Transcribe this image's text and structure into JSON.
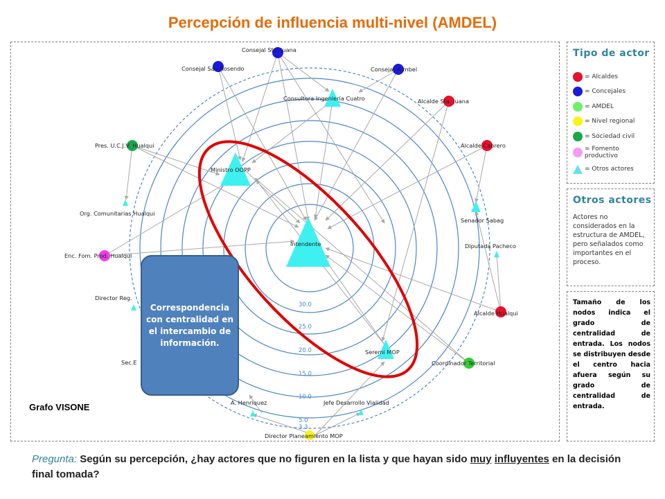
{
  "title": "Percepción de influencia multi-nivel (AMDEL)",
  "graph": {
    "label": "Grafo VISONE",
    "ring_values": [
      "30.0",
      "25.0",
      "20.0",
      "15.0",
      "10.0",
      "5.0",
      "3.3"
    ],
    "nodes": [
      {
        "id": "juana_c",
        "label": "Consejal Sta. Juana",
        "type": "Concejales"
      },
      {
        "id": "rosendo",
        "label": "Consejal San Rosendo",
        "type": "Concejales"
      },
      {
        "id": "yumbel",
        "label": "Consejal Yumbel",
        "type": "Concejales"
      },
      {
        "id": "cuatro",
        "label": "Consultora Ingeniería Cuatro",
        "type": "Otros actores"
      },
      {
        "id": "alc_juana",
        "label": "Alcalde Sta. Juana",
        "type": "Alcaldes"
      },
      {
        "id": "cabrero",
        "label": "Alcalde Cabrero",
        "type": "Alcaldes"
      },
      {
        "id": "ucjv",
        "label": "Pres. U.C.J.V. Hualqui",
        "type": "Sociedad civil"
      },
      {
        "id": "oopp",
        "label": "Ministro OOPP",
        "type": "Otros actores"
      },
      {
        "id": "sabag",
        "label": "Senador Sabag",
        "type": "Otros actores"
      },
      {
        "id": "org",
        "label": "Org. Comunitarias Hualqui",
        "type": "Otros actores"
      },
      {
        "id": "intendente",
        "label": "Intendente",
        "type": "Otros actores"
      },
      {
        "id": "pacheco",
        "label": "Diputada Pacheco",
        "type": "Otros actores"
      },
      {
        "id": "fomento",
        "label": "Enc. Fom. Prod. Hualqui",
        "type": "Fomento productivo"
      },
      {
        "id": "dirreg",
        "label": "Director Reg.",
        "type": "Otros actores"
      },
      {
        "id": "hualqui",
        "label": "Alcalde Hualqui",
        "type": "Alcaldes"
      },
      {
        "id": "seremi",
        "label": "Seremi MOP",
        "type": "Otros actores"
      },
      {
        "id": "coord",
        "label": "Coordinador Territorial",
        "type": "Sociedad civil"
      },
      {
        "id": "sec",
        "label": "Sec.E",
        "type": "Otros actores"
      },
      {
        "id": "henriquez",
        "label": "A. Henriquez",
        "type": "Otros actores"
      },
      {
        "id": "vialidad",
        "label": "Jefe Desarrollo Vialidad",
        "type": "Otros actores"
      },
      {
        "id": "planeamiento",
        "label": "Director Planeamiento MOP",
        "type": "Nivel regional"
      }
    ]
  },
  "legend": {
    "title": "Tipo de actor",
    "items": [
      {
        "label": "= Alcaldes",
        "color": "#e8102a",
        "shape": "circle"
      },
      {
        "label": "= Concejales",
        "color": "#1a1adf",
        "shape": "circle"
      },
      {
        "label": "= AMDEL",
        "color": "#6ef06e",
        "shape": "circle"
      },
      {
        "label": "= Nivel regional",
        "color": "#f5f51a",
        "shape": "circle"
      },
      {
        "label": "= Sociedad civil",
        "color": "#1aa84a",
        "shape": "circle"
      },
      {
        "label": "= Fomento productivo",
        "color": "#f49cf2",
        "shape": "circle"
      },
      {
        "label": "= Otros actores",
        "color": "#66e0f0",
        "shape": "triangle"
      }
    ]
  },
  "others": {
    "title": "Otros actores",
    "text": "Actores no considerados en la estructura de AMDEL, pero señalados como importantes en el proceso."
  },
  "size_note": "Tamaño de los nodos indica el grado de centralidad de entrada. Los nodos se distribuyen desde el centro hacia afuera según su grado de centralidad de entrada.",
  "callout": "Correspondencia con centralidad en el intercambio de información.",
  "question": {
    "label": "Pregunta:",
    "part1": " Según su percepción, ¿hay actores que no figuren en la lista y que hayan sido ",
    "underline1": "muy",
    "part2": " ",
    "underline2": "influyentes",
    "part3": " en la decisión final tomada?"
  }
}
